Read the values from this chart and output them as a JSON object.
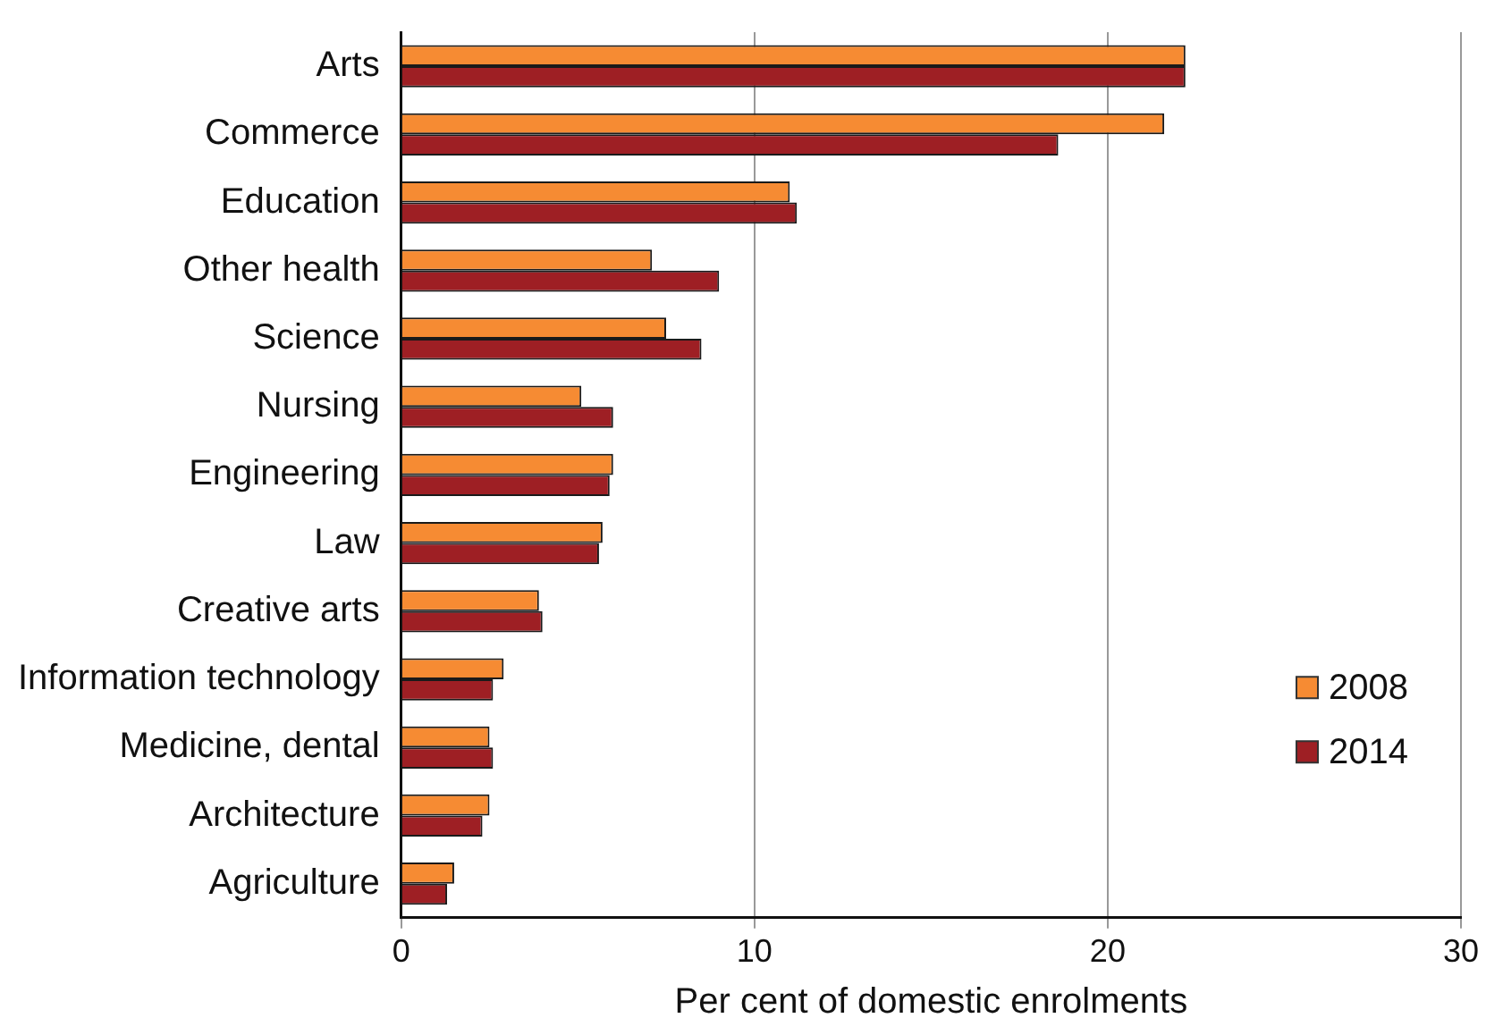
{
  "chart_data": {
    "type": "bar",
    "orientation": "horizontal",
    "xlabel": "Per cent of domestic enrolments",
    "categories": [
      "Arts",
      "Commerce",
      "Education",
      "Other health",
      "Science",
      "Nursing",
      "Engineering",
      "Law",
      "Creative arts",
      "Information technology",
      "Medicine, dental",
      "Architecture",
      "Agriculture"
    ],
    "series": [
      {
        "name": "2008",
        "color": "#f68b33",
        "values": [
          22.2,
          21.6,
          11.0,
          7.1,
          7.5,
          5.1,
          6.0,
          5.7,
          3.9,
          2.9,
          2.5,
          2.5,
          1.5
        ]
      },
      {
        "name": "2014",
        "color": "#9e1f24",
        "values": [
          22.2,
          18.6,
          11.2,
          9.0,
          8.5,
          6.0,
          5.9,
          5.6,
          4.0,
          2.6,
          2.6,
          2.3,
          1.3
        ]
      }
    ],
    "xlim": [
      0,
      30
    ],
    "xticks": [
      0,
      10,
      20,
      30
    ],
    "grid": "x",
    "legend": "right"
  }
}
